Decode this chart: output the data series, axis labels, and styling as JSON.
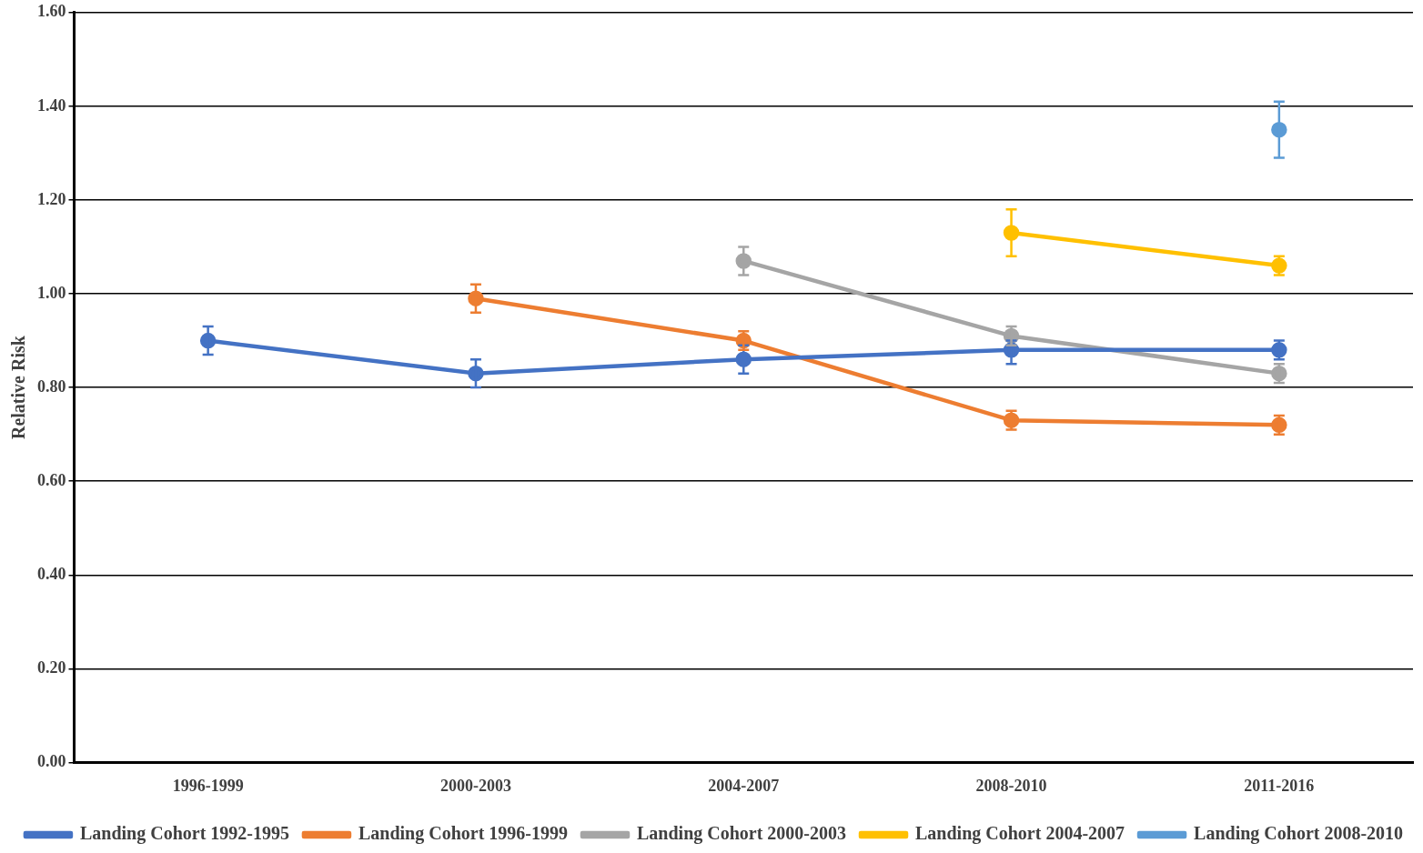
{
  "chart_data": {
    "type": "line",
    "ylabel": "Relative Risk",
    "categories": [
      "1996-1999",
      "2000-2003",
      "2004-2007",
      "2008-2010",
      "2011-2016"
    ],
    "ylim": [
      0,
      1.6
    ],
    "yticks": [
      {
        "value": 0,
        "label": "0.00"
      },
      {
        "value": 0.2,
        "label": "0.20"
      },
      {
        "value": 0.4,
        "label": "0.40"
      },
      {
        "value": 0.6,
        "label": "0.60"
      },
      {
        "value": 0.8,
        "label": "0.80"
      },
      {
        "value": 1,
        "label": "1.00"
      },
      {
        "value": 1.2,
        "label": "1.20"
      },
      {
        "value": 1.4,
        "label": "1.40"
      },
      {
        "value": 1.6,
        "label": "1.60"
      }
    ],
    "grid": "y",
    "legend": "bottom",
    "marker": "circle",
    "line_style": "solid",
    "series": [
      {
        "name": "Landing Cohort 1992-1995",
        "color": "#4472c4",
        "values": [
          0.9,
          0.83,
          0.86,
          0.88,
          0.88
        ],
        "errors": [
          [
            0.87,
            0.93
          ],
          [
            0.8,
            0.86
          ],
          [
            0.83,
            0.89
          ],
          [
            0.85,
            0.9
          ],
          [
            0.86,
            0.9
          ]
        ]
      },
      {
        "name": "Landing Cohort 1996-1999",
        "color": "#ed7d31",
        "values": [
          null,
          0.99,
          0.9,
          0.73,
          0.72
        ],
        "errors": [
          null,
          [
            0.96,
            1.02
          ],
          [
            0.88,
            0.92
          ],
          [
            0.71,
            0.75
          ],
          [
            0.7,
            0.74
          ]
        ]
      },
      {
        "name": "Landing Cohort 2000-2003",
        "color": "#a5a5a5",
        "values": [
          null,
          null,
          1.07,
          0.91,
          0.83
        ],
        "errors": [
          null,
          null,
          [
            1.04,
            1.1
          ],
          [
            0.89,
            0.93
          ],
          [
            0.81,
            0.85
          ]
        ]
      },
      {
        "name": "Landing Cohort 2004-2007",
        "color": "#ffc000",
        "values": [
          null,
          null,
          null,
          1.13,
          1.06
        ],
        "errors": [
          null,
          null,
          null,
          [
            1.08,
            1.18
          ],
          [
            1.04,
            1.08
          ]
        ]
      },
      {
        "name": "Landing Cohort 2008-2010",
        "color": "#5b9bd5",
        "values": [
          null,
          null,
          null,
          null,
          1.35
        ],
        "errors": [
          null,
          null,
          null,
          null,
          [
            1.29,
            1.41
          ]
        ]
      }
    ]
  }
}
